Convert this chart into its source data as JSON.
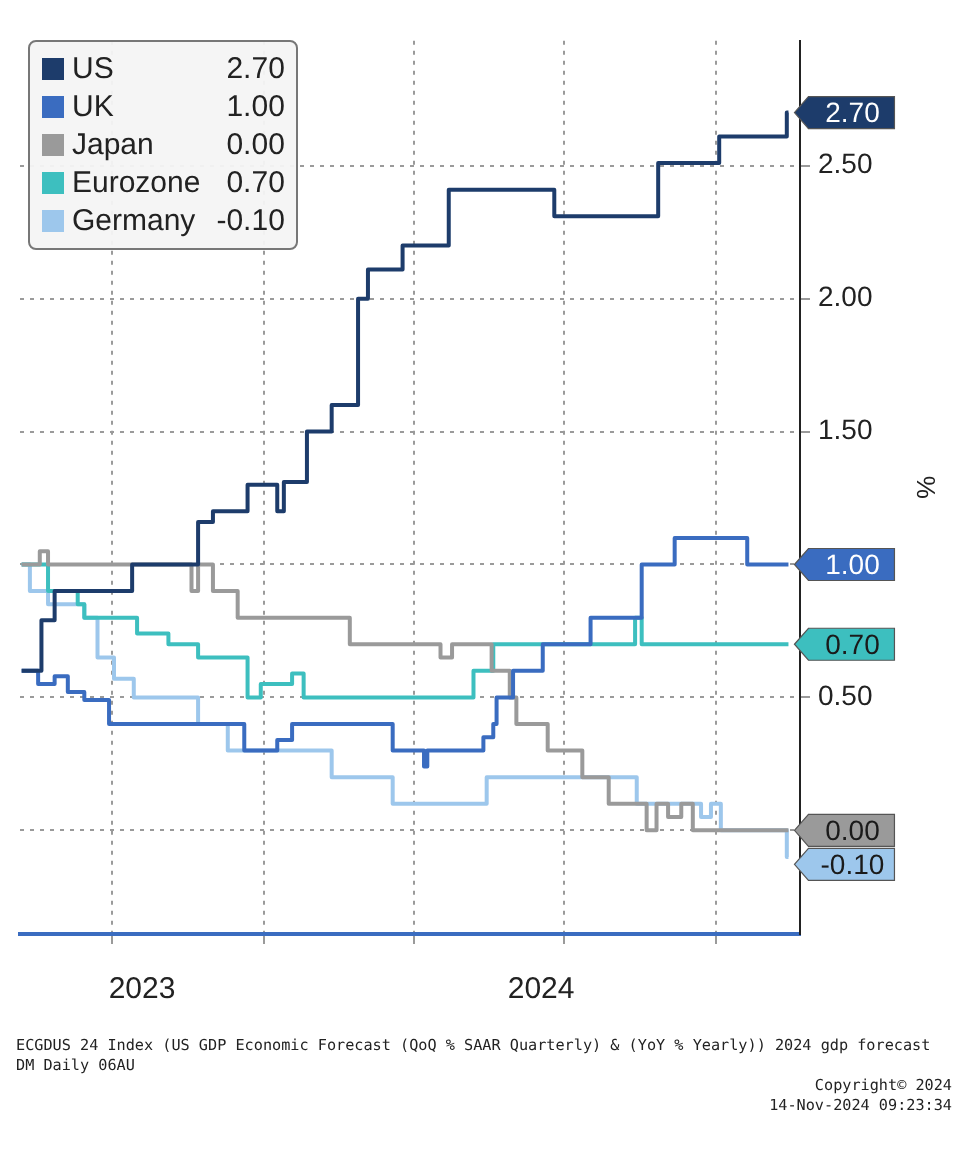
{
  "chart_data": {
    "type": "step",
    "xlim": [
      "2023-08-06",
      "2024-11-21"
    ],
    "xticks": [
      {
        "value": "2023-10-01",
        "label": null
      },
      {
        "value": "2023-10-19",
        "label": "2023"
      },
      {
        "value": "2024-01-01",
        "label": null
      },
      {
        "value": "2024-04-01",
        "label": null
      },
      {
        "value": "2024-06-17",
        "label": "2024"
      },
      {
        "value": "2024-07-01",
        "label": null
      },
      {
        "value": "2024-10-01",
        "label": null
      }
    ],
    "ylim": [
      -0.39,
      2.97
    ],
    "yticks": [
      {
        "value": 0,
        "label": null
      },
      {
        "value": 0.5,
        "label": "0.50"
      },
      {
        "value": 1,
        "label": null
      },
      {
        "value": 1.5,
        "label": "1.50"
      },
      {
        "value": 2,
        "label": "2.00"
      },
      {
        "value": 2.5,
        "label": "2.50"
      }
    ],
    "ylabel": "%",
    "grid": true,
    "legend": "top left",
    "series": [
      {
        "name": "US",
        "color": "#1d3c6b",
        "x": [
          "2023-08-07",
          "2023-08-19",
          "2023-08-27",
          "2023-10-13",
          "2023-11-22",
          "2023-12-01",
          "2023-12-22",
          "2024-01-09",
          "2024-01-13",
          "2024-01-27",
          "2024-02-11",
          "2024-02-27",
          "2024-03-04",
          "2024-03-25",
          "2024-04-22",
          "2024-06-25",
          "2024-08-27",
          "2024-10-03",
          "2024-11-13",
          "2024-11-14"
        ],
        "values": [
          0.6,
          0.79,
          0.9,
          1.0,
          1.16,
          1.2,
          1.3,
          1.2,
          1.31,
          1.5,
          1.6,
          2.0,
          2.11,
          2.2,
          2.41,
          2.31,
          2.51,
          2.61,
          2.7,
          2.7
        ],
        "value_labels": [
          null,
          null,
          null,
          null,
          null,
          null,
          null,
          null,
          null,
          null,
          null,
          null,
          null,
          null,
          null,
          null,
          null,
          null,
          null,
          "2.70"
        ]
      },
      {
        "name": "UK",
        "color": "#3a6cc0",
        "x": [
          "2023-08-07",
          "2023-08-17",
          "2023-08-27",
          "2023-09-04",
          "2023-09-14",
          "2023-09-29",
          "2023-12-20",
          "2024-01-09",
          "2024-01-18",
          "2024-03-19",
          "2024-04-07",
          "2024-04-09",
          "2024-05-13",
          "2024-05-19",
          "2024-05-21",
          "2024-05-31",
          "2024-06-18",
          "2024-07-17",
          "2024-08-17",
          "2024-09-06",
          "2024-10-20",
          "2024-11-14"
        ],
        "values": [
          0.6,
          0.55,
          0.58,
          0.52,
          0.49,
          0.4,
          0.3,
          0.34,
          0.4,
          0.3,
          0.24,
          0.3,
          0.35,
          0.4,
          0.5,
          0.6,
          0.7,
          0.8,
          1.0,
          1.1,
          1.0,
          1.0
        ],
        "value_labels": [
          null,
          null,
          null,
          null,
          null,
          null,
          null,
          null,
          null,
          null,
          null,
          null,
          null,
          null,
          null,
          null,
          null,
          null,
          null,
          null,
          null,
          "1.00"
        ]
      },
      {
        "name": "Japan",
        "color": "#9a9a9a",
        "x": [
          "2023-08-07",
          "2023-08-18",
          "2023-08-23",
          "2023-11-18",
          "2023-11-22",
          "2023-12-01",
          "2023-12-16",
          "2024-02-22",
          "2024-04-17",
          "2024-04-24",
          "2024-05-18",
          "2024-05-29",
          "2024-06-02",
          "2024-06-21",
          "2024-07-12",
          "2024-07-28",
          "2024-08-20",
          "2024-08-26",
          "2024-09-02",
          "2024-09-10",
          "2024-09-17",
          "2024-11-14"
        ],
        "values": [
          1.0,
          1.05,
          1.0,
          0.9,
          1.0,
          0.9,
          0.8,
          0.7,
          0.65,
          0.7,
          0.6,
          0.5,
          0.4,
          0.3,
          0.2,
          0.1,
          0.0,
          0.1,
          0.05,
          0.1,
          0.0,
          0.0
        ],
        "value_labels": [
          null,
          null,
          null,
          null,
          null,
          null,
          null,
          null,
          null,
          null,
          null,
          null,
          null,
          null,
          null,
          null,
          null,
          null,
          null,
          null,
          null,
          "0.00"
        ]
      },
      {
        "name": "Eurozone",
        "color": "#3dbfbf",
        "x": [
          "2023-08-07",
          "2023-08-23",
          "2023-09-10",
          "2023-09-14",
          "2023-10-16",
          "2023-11-04",
          "2023-11-22",
          "2023-12-22",
          "2023-12-30",
          "2024-01-18",
          "2024-01-25",
          "2024-05-07",
          "2024-05-19",
          "2024-08-13",
          "2024-08-17",
          "2024-11-14"
        ],
        "values": [
          1.0,
          0.9,
          0.85,
          0.8,
          0.74,
          0.7,
          0.65,
          0.5,
          0.55,
          0.59,
          0.5,
          0.6,
          0.7,
          0.8,
          0.7,
          0.7
        ],
        "value_labels": [
          null,
          null,
          null,
          null,
          null,
          null,
          null,
          null,
          null,
          null,
          null,
          null,
          null,
          null,
          null,
          "0.70"
        ]
      },
      {
        "name": "Germany",
        "color": "#9dc7ec",
        "x": [
          "2023-08-07",
          "2023-08-12",
          "2023-08-23",
          "2023-09-14",
          "2023-09-22",
          "2023-10-02",
          "2023-10-14",
          "2023-11-22",
          "2023-12-10",
          "2024-02-11",
          "2024-03-19",
          "2024-05-15",
          "2024-08-14",
          "2024-09-22",
          "2024-09-28",
          "2024-10-04",
          "2024-11-13",
          "2024-11-14"
        ],
        "values": [
          1.0,
          0.9,
          0.85,
          0.8,
          0.65,
          0.57,
          0.5,
          0.4,
          0.3,
          0.2,
          0.1,
          0.2,
          0.1,
          0.05,
          0.1,
          0.0,
          -0.1,
          -0.1
        ],
        "value_labels": [
          null,
          null,
          null,
          null,
          null,
          null,
          null,
          null,
          null,
          null,
          null,
          null,
          null,
          null,
          null,
          null,
          null,
          "-0.10"
        ]
      }
    ],
    "annotations": [
      "ECGDUS 24 Index (US GDP Economic Forecast (QoQ % SAAR Quarterly) & (YoY % Yearly)) 2024 gdp forecast DM  Daily 06AU",
      "Copyright© 2024",
      "14-Nov-2024 09:23:34"
    ]
  }
}
